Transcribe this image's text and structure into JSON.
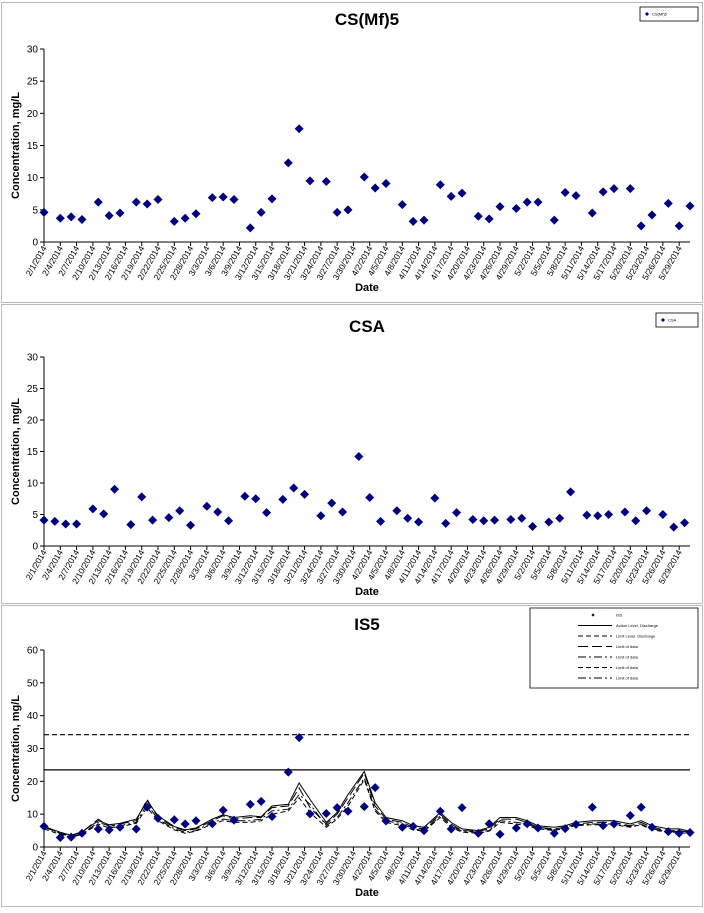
{
  "chart_data": [
    {
      "type": "scatter",
      "title": "CS(Mf)5",
      "xlabel": "Date",
      "ylabel": "Concentration, mg/L",
      "ylim": [
        0,
        30
      ],
      "yticks": [
        0,
        5,
        10,
        15,
        20,
        25,
        30
      ],
      "grid": false,
      "legend_position": "top-right",
      "legend_entries": [
        "CS(Mf)5"
      ],
      "x": [
        "2/1/2014",
        "2/4/2014",
        "2/6/2014",
        "2/8/2014",
        "2/11/2014",
        "2/13/2014",
        "2/15/2014",
        "2/18/2014",
        "2/20/2014",
        "2/22/2014",
        "2/25/2014",
        "2/27/2014",
        "3/1/2014",
        "3/4/2014",
        "3/6/2014",
        "3/8/2014",
        "3/11/2014",
        "3/13/2014",
        "3/15/2014",
        "3/18/2014",
        "3/20/2014",
        "3/22/2014",
        "3/25/2014",
        "3/27/2014",
        "3/29/2014",
        "4/1/2014",
        "4/3/2014",
        "4/5/2014",
        "4/8/2014",
        "4/10/2014",
        "4/12/2014",
        "4/15/2014",
        "4/17/2014",
        "4/19/2014",
        "4/22/2014",
        "4/24/2014",
        "4/26/2014",
        "4/29/2014",
        "5/1/2014",
        "5/3/2014",
        "5/6/2014",
        "5/8/2014",
        "5/10/2014",
        "5/13/2014",
        "5/15/2014",
        "5/17/2014",
        "5/20/2014",
        "5/22/2014",
        "5/24/2014",
        "5/27/2014",
        "5/29/2014",
        "5/31/2014"
      ],
      "y": [
        4.6,
        3.7,
        3.9,
        3.5,
        6.2,
        4.1,
        4.5,
        6.2,
        5.9,
        6.6,
        3.2,
        3.7,
        4.4,
        6.9,
        7.0,
        6.6,
        2.2,
        4.6,
        6.7,
        12.3,
        17.6,
        9.5,
        9.4,
        4.6,
        5.0,
        10.1,
        8.4,
        9.1,
        5.8,
        3.2,
        3.4,
        8.9,
        7.1,
        7.6,
        4.0,
        3.6,
        5.5,
        5.2,
        6.2,
        6.2,
        3.4,
        7.7,
        7.2,
        4.5,
        7.8,
        8.3,
        8.3,
        2.5,
        4.2,
        6.0,
        2.5,
        5.6
      ],
      "xtick_labels": [
        "2/1/2014",
        "2/4/2014",
        "2/7/2014",
        "2/10/2014",
        "2/13/2014",
        "2/16/2014",
        "2/19/2014",
        "2/22/2014",
        "2/25/2014",
        "2/28/2014",
        "3/3/2014",
        "3/6/2014",
        "3/9/2014",
        "3/12/2014",
        "3/15/2014",
        "3/18/2014",
        "3/21/2014",
        "3/24/2014",
        "3/27/2014",
        "3/30/2014",
        "4/2/2014",
        "4/5/2014",
        "4/8/2014",
        "4/11/2014",
        "4/14/2014",
        "4/17/2014",
        "4/20/2014",
        "4/23/2014",
        "4/26/2014",
        "4/29/2014",
        "5/2/2014",
        "5/5/2014",
        "5/8/2014",
        "5/11/2014",
        "5/14/2014",
        "5/17/2014",
        "5/20/2014",
        "5/23/2014",
        "5/26/2014",
        "5/29/2014"
      ]
    },
    {
      "type": "scatter",
      "title": "CSA",
      "xlabel": "Date",
      "ylabel": "Concentration, mg/L",
      "ylim": [
        0,
        30
      ],
      "yticks": [
        0,
        5,
        10,
        15,
        20,
        25,
        30
      ],
      "grid": false,
      "legend_position": "top-right",
      "legend_entries": [
        "CSA"
      ],
      "x": [
        "2/1/2014",
        "2/3/2014",
        "2/5/2014",
        "2/7/2014",
        "2/10/2014",
        "2/12/2014",
        "2/14/2014",
        "2/17/2014",
        "2/19/2014",
        "2/21/2014",
        "2/24/2014",
        "2/26/2014",
        "2/28/2014",
        "3/3/2014",
        "3/5/2014",
        "3/7/2014",
        "3/10/2014",
        "3/12/2014",
        "3/14/2014",
        "3/17/2014",
        "3/19/2014",
        "3/21/2014",
        "3/24/2014",
        "3/26/2014",
        "3/28/2014",
        "3/31/2014",
        "4/2/2014",
        "4/4/2014",
        "4/7/2014",
        "4/9/2014",
        "4/11/2014",
        "4/14/2014",
        "4/16/2014",
        "4/18/2014",
        "4/21/2014",
        "4/23/2014",
        "4/25/2014",
        "4/28/2014",
        "4/30/2014",
        "5/2/2014",
        "5/5/2014",
        "5/7/2014",
        "5/9/2014",
        "5/12/2014",
        "5/14/2014",
        "5/16/2014",
        "5/19/2014",
        "5/21/2014",
        "5/23/2014",
        "5/26/2014",
        "5/28/2014",
        "5/30/2014"
      ],
      "y": [
        4.1,
        3.9,
        3.5,
        3.5,
        5.9,
        5.1,
        9.0,
        3.4,
        7.8,
        4.1,
        4.5,
        5.6,
        3.3,
        6.3,
        5.4,
        4.0,
        7.9,
        7.5,
        5.3,
        7.4,
        9.2,
        8.2,
        4.8,
        6.8,
        5.4,
        14.2,
        7.7,
        3.9,
        5.6,
        4.4,
        3.8,
        7.6,
        3.6,
        5.3,
        4.2,
        4.0,
        4.1,
        4.2,
        4.4,
        3.1,
        3.8,
        4.4,
        8.6,
        4.9,
        4.8,
        5.0,
        5.4,
        4.0,
        5.6,
        5.0,
        3.0,
        3.7
      ],
      "xtick_labels": [
        "2/1/2014",
        "2/4/2014",
        "2/7/2014",
        "2/10/2014",
        "2/13/2014",
        "2/16/2014",
        "2/19/2014",
        "2/22/2014",
        "2/25/2014",
        "2/28/2014",
        "3/3/2014",
        "3/6/2014",
        "3/9/2014",
        "3/12/2014",
        "3/15/2014",
        "3/18/2014",
        "3/21/2014",
        "3/24/2014",
        "3/27/2014",
        "3/30/2014",
        "4/2/2014",
        "4/5/2014",
        "4/8/2014",
        "4/11/2014",
        "4/14/2014",
        "4/17/2014",
        "4/20/2014",
        "4/23/2014",
        "4/26/2014",
        "4/29/2014",
        "5/2/2014",
        "5/5/2014",
        "5/8/2014",
        "5/11/2014",
        "5/14/2014",
        "5/17/2014",
        "5/20/2014",
        "5/23/2014",
        "5/26/2014",
        "5/29/2014"
      ]
    },
    {
      "type": "line",
      "title": "IS5",
      "xlabel": "Date",
      "ylabel": "Concentration, mg/L",
      "ylim": [
        0,
        60
      ],
      "yticks": [
        0,
        10,
        20,
        30,
        40,
        50,
        60
      ],
      "grid": false,
      "legend_position": "top-right",
      "legend_entries": [
        "IS5",
        "Action Level, Discharge",
        "Limit Level, Discharge",
        "Limit of data",
        "Limit of data",
        "Limit of data",
        "Limit of data"
      ],
      "x": [
        "2/1/2014",
        "2/4/2014",
        "2/6/2014",
        "2/8/2014",
        "2/11/2014",
        "2/13/2014",
        "2/15/2014",
        "2/18/2014",
        "2/20/2014",
        "2/22/2014",
        "2/25/2014",
        "2/27/2014",
        "3/1/2014",
        "3/4/2014",
        "3/6/2014",
        "3/8/2014",
        "3/11/2014",
        "3/13/2014",
        "3/15/2014",
        "3/18/2014",
        "3/20/2014",
        "3/22/2014",
        "3/25/2014",
        "3/27/2014",
        "3/29/2014",
        "4/1/2014",
        "4/3/2014",
        "4/5/2014",
        "4/8/2014",
        "4/10/2014",
        "4/12/2014",
        "4/15/2014",
        "4/17/2014",
        "4/19/2014",
        "4/22/2014",
        "4/24/2014",
        "4/26/2014",
        "4/29/2014",
        "5/1/2014",
        "5/3/2014",
        "5/6/2014",
        "5/8/2014",
        "5/10/2014",
        "5/13/2014",
        "5/15/2014",
        "5/17/2014",
        "5/20/2014",
        "5/22/2014",
        "5/24/2014",
        "5/27/2014",
        "5/29/2014",
        "5/31/2014"
      ],
      "reference_lines": [
        {
          "value": 23.5,
          "style": "solid"
        },
        {
          "value": 34.2,
          "style": "dashed"
        }
      ],
      "series": [
        {
          "style": "markers",
          "values": [
            6.3,
            2.9,
            3.0,
            4.2,
            5.5,
            5.2,
            6.0,
            5.5,
            12.1,
            8.7,
            8.3,
            7.0,
            8.0,
            7.1,
            11.2,
            8.2,
            13.0,
            13.9,
            9.3,
            22.8,
            33.3,
            10.1,
            10.2,
            12.0,
            10.9,
            12.3,
            18.1,
            7.9,
            6.0,
            6.3,
            5.0,
            10.9,
            5.5,
            12.0,
            4.2,
            7.1,
            3.9,
            5.8,
            7.1,
            5.8,
            4.2,
            5.6,
            6.9,
            12.1,
            6.5,
            7.0,
            9.6,
            12.1,
            6.0,
            4.7,
            4.2,
            4.4
          ]
        },
        {
          "style": "long-dash",
          "values": [
            6.0,
            4.2,
            3.5,
            4.5,
            8.5,
            6.2,
            7.0,
            8.0,
            14.5,
            9.0,
            6.0,
            5.0,
            5.5,
            8.0,
            9.5,
            8.5,
            9.0,
            9.0,
            12.0,
            12.5,
            18.0,
            12.0,
            7.0,
            10.0,
            15.0,
            22.5,
            12.5,
            8.5,
            7.5,
            6.0,
            5.5,
            10.0,
            7.0,
            5.0,
            4.8,
            5.5,
            8.5,
            8.5,
            7.5,
            6.0,
            5.5,
            6.0,
            7.0,
            7.5,
            7.5,
            7.5,
            6.5,
            7.5,
            6.0,
            5.0,
            5.0,
            4.5
          ]
        },
        {
          "style": "dash-dot",
          "values": [
            6.5,
            4.0,
            3.2,
            4.0,
            7.5,
            6.5,
            6.5,
            7.5,
            13.0,
            8.5,
            5.5,
            4.5,
            5.0,
            7.5,
            8.5,
            8.0,
            8.0,
            8.5,
            11.0,
            11.5,
            16.0,
            13.0,
            6.5,
            9.0,
            13.5,
            21.0,
            11.5,
            8.0,
            7.0,
            5.5,
            5.0,
            9.5,
            6.5,
            4.8,
            4.5,
            5.0,
            8.0,
            7.5,
            7.0,
            5.8,
            5.2,
            6.2,
            6.8,
            7.0,
            7.0,
            7.0,
            6.2,
            7.0,
            5.5,
            4.8,
            4.8,
            4.2
          ]
        },
        {
          "style": "dash",
          "values": [
            5.5,
            3.8,
            3.0,
            3.8,
            7.0,
            5.8,
            6.2,
            7.2,
            12.0,
            8.0,
            5.2,
            4.2,
            4.8,
            7.0,
            8.0,
            7.5,
            7.5,
            8.0,
            10.0,
            11.0,
            15.0,
            10.5,
            6.0,
            8.5,
            12.5,
            20.5,
            11.0,
            7.5,
            6.5,
            5.2,
            4.8,
            9.0,
            6.0,
            4.5,
            4.2,
            4.8,
            7.5,
            7.0,
            6.5,
            5.5,
            5.0,
            5.8,
            6.5,
            6.8,
            6.8,
            6.8,
            6.0,
            6.8,
            5.2,
            4.5,
            4.5,
            4.0
          ]
        },
        {
          "style": "solid-black",
          "values": [
            6.2,
            4.5,
            3.6,
            4.6,
            8.0,
            6.8,
            7.2,
            8.5,
            14.0,
            9.5,
            6.2,
            5.2,
            5.8,
            8.5,
            9.8,
            9.0,
            9.5,
            9.2,
            12.5,
            13.0,
            19.5,
            14.5,
            7.5,
            10.5,
            16.0,
            23.0,
            13.5,
            9.0,
            8.0,
            6.5,
            6.0,
            10.5,
            7.5,
            5.5,
            5.0,
            6.0,
            9.0,
            9.0,
            8.0,
            6.5,
            6.0,
            6.5,
            7.5,
            8.0,
            8.0,
            8.0,
            7.0,
            8.0,
            6.5,
            5.5,
            5.5,
            4.8
          ]
        }
      ],
      "xtick_labels": [
        "2/1/2014",
        "2/4/2014",
        "2/7/2014",
        "2/10/2014",
        "2/13/2014",
        "2/16/2014",
        "2/19/2014",
        "2/22/2014",
        "2/25/2014",
        "2/28/2014",
        "3/3/2014",
        "3/6/2014",
        "3/9/2014",
        "3/12/2014",
        "3/15/2014",
        "3/18/2014",
        "3/21/2014",
        "3/24/2014",
        "3/27/2014",
        "3/30/2014",
        "4/2/2014",
        "4/5/2014",
        "4/8/2014",
        "4/11/2014",
        "4/14/2014",
        "4/17/2014",
        "4/20/2014",
        "4/23/2014",
        "4/26/2014",
        "4/29/2014",
        "5/2/2014",
        "5/5/2014",
        "5/8/2014",
        "5/11/2014",
        "5/14/2014",
        "5/17/2014",
        "5/20/2014",
        "5/23/2014",
        "5/26/2014",
        "5/29/2014"
      ]
    }
  ],
  "colors": {
    "marker": "#000080",
    "line": "#000000",
    "border": "#777777"
  }
}
